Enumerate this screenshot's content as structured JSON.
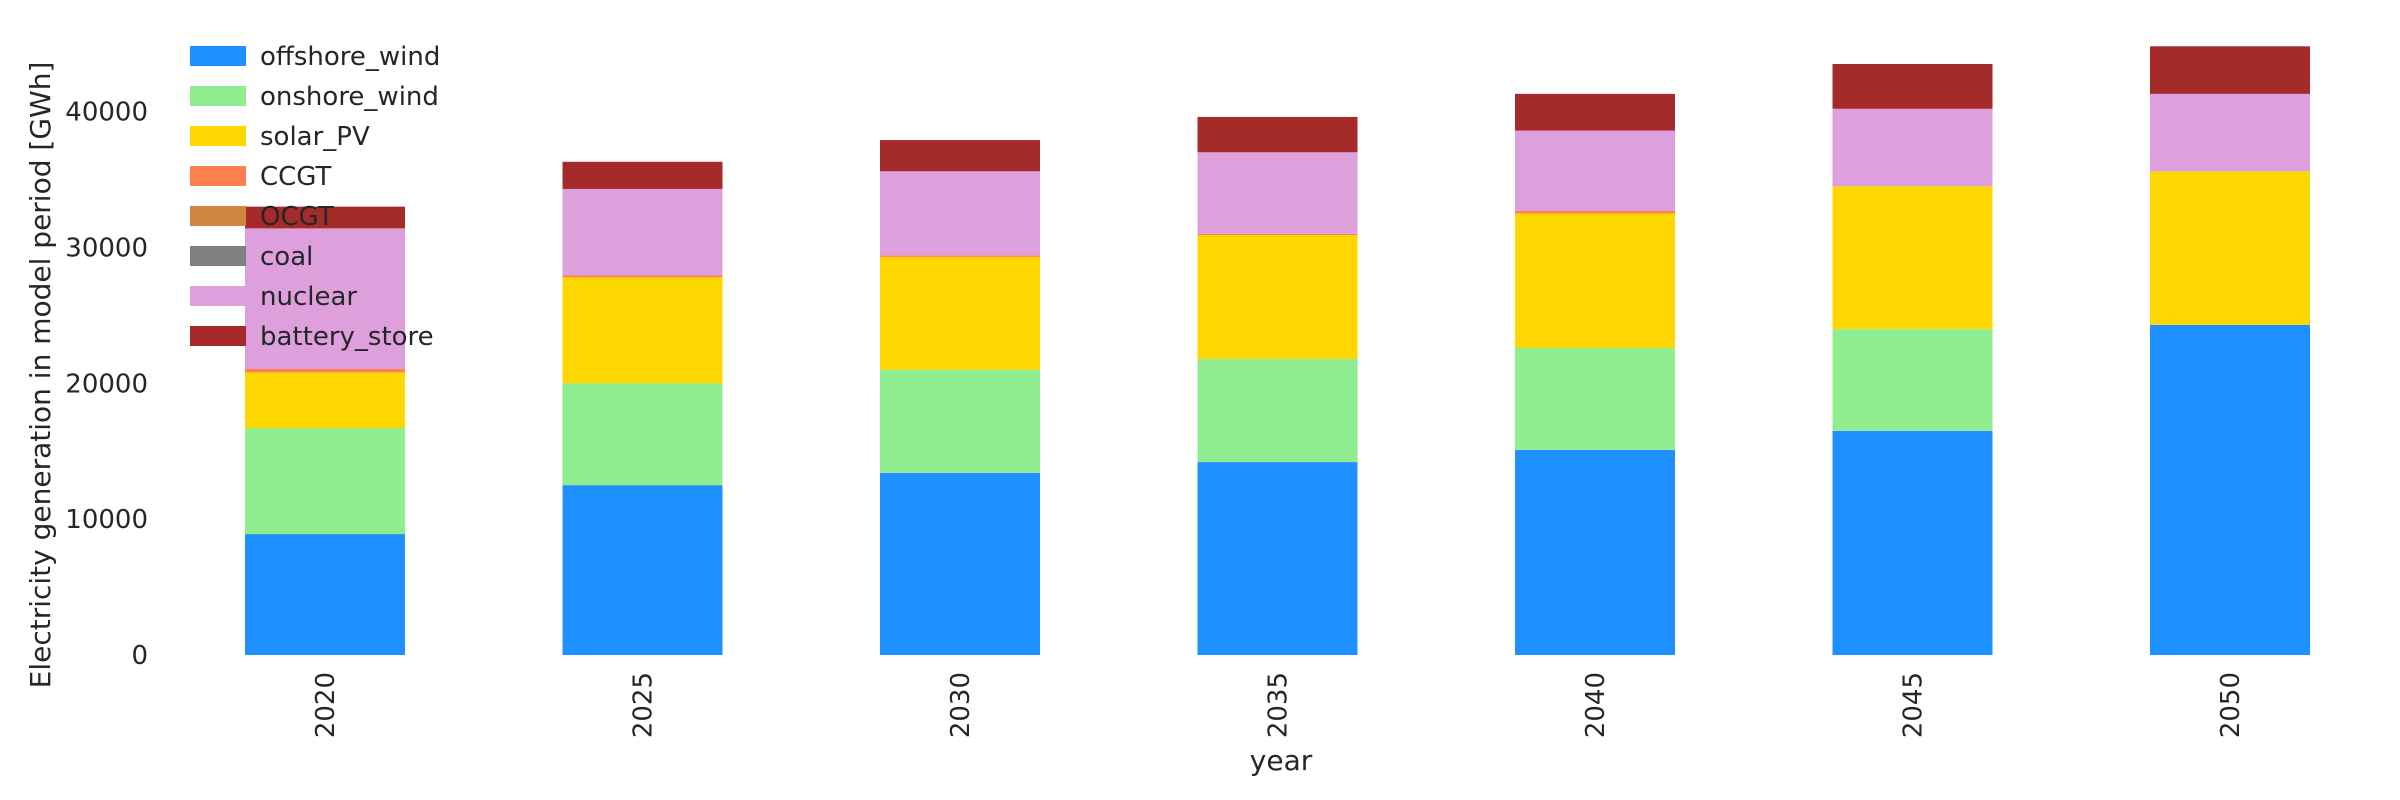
{
  "chart_data": {
    "type": "bar",
    "stacked": true,
    "title": "",
    "xlabel": "year",
    "ylabel": "Electricity generation in model period [GWh]",
    "categories": [
      "2020",
      "2025",
      "2030",
      "2035",
      "2040",
      "2045",
      "2050"
    ],
    "ylim": [
      0,
      46000
    ],
    "yticks": [
      0,
      10000,
      20000,
      30000,
      40000
    ],
    "grid": false,
    "legend_position": "top-left",
    "series": [
      {
        "name": "offshore_wind",
        "color": "#1e90ff",
        "values": [
          8900,
          12500,
          13400,
          14200,
          15100,
          16500,
          24300
        ]
      },
      {
        "name": "onshore_wind",
        "color": "#90ee90",
        "values": [
          7800,
          7500,
          7600,
          7600,
          7500,
          7500,
          0
        ]
      },
      {
        "name": "solar_PV",
        "color": "#ffd700",
        "values": [
          4100,
          7800,
          8300,
          9100,
          9900,
          10500,
          11300
        ]
      },
      {
        "name": "CCGT",
        "color": "#ff7f50",
        "values": [
          250,
          150,
          120,
          100,
          200,
          0,
          0
        ]
      },
      {
        "name": "OCGT",
        "color": "#cd853f",
        "values": [
          0,
          0,
          0,
          0,
          0,
          0,
          0
        ]
      },
      {
        "name": "coal",
        "color": "#808080",
        "values": [
          0,
          0,
          0,
          0,
          0,
          0,
          0
        ]
      },
      {
        "name": "nuclear",
        "color": "#dda0dd",
        "values": [
          10350,
          6350,
          6180,
          6000,
          5900,
          5700,
          5700
        ]
      },
      {
        "name": "battery_store",
        "color": "#a52a2a",
        "values": [
          1600,
          2000,
          2300,
          2600,
          2700,
          3300,
          3500
        ]
      }
    ]
  }
}
